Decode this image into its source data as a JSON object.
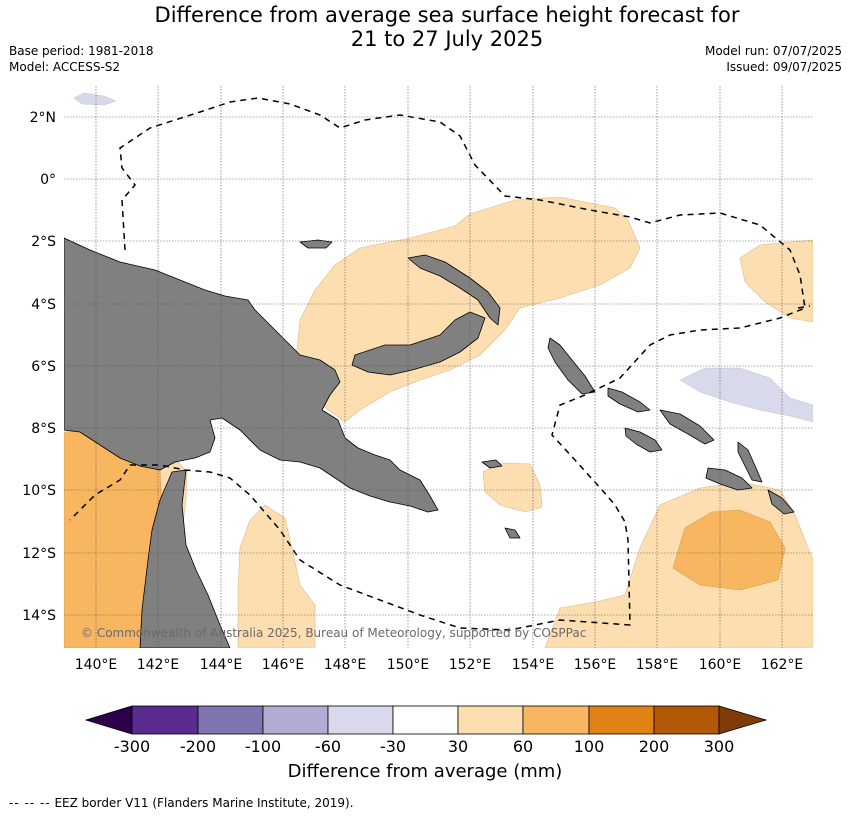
{
  "title_line1": "Difference from average sea surface height forecast for",
  "title_line2": "21 to 27 July 2025",
  "base_period": "Base period: 1981-2018",
  "model": "Model: ACCESS-S2",
  "model_run": "Model run: 07/07/2025",
  "issued": "Issued: 09/07/2025",
  "copyright": "© Commonwealth of Australia 2025, Bureau of Meteorology, supported by COSPPac",
  "map": {
    "lon_ticks": [
      "140°E",
      "142°E",
      "144°E",
      "146°E",
      "148°E",
      "150°E",
      "152°E",
      "154°E",
      "156°E",
      "158°E",
      "160°E",
      "162°E"
    ],
    "lat_ticks": [
      "2°N",
      "0°",
      "2°S",
      "4°S",
      "6°S",
      "8°S",
      "10°S",
      "12°S",
      "14°S"
    ],
    "lon_range": [
      139,
      163
    ],
    "lat_range": [
      -15,
      3
    ],
    "grid": true,
    "colors": {
      "land": "#808080",
      "ocean": "#ffffff",
      "pale_orange": "#fddeb0",
      "orange": "#f9b660",
      "pale_purple": "#d8d9ea"
    }
  },
  "colorbar": {
    "ticks": [
      "-300",
      "-200",
      "-100",
      "-60",
      "-30",
      "30",
      "60",
      "100",
      "200",
      "300"
    ],
    "colors": [
      "#5b2b8f",
      "#8074b0",
      "#b2abd2",
      "#d8d9ea",
      "#ffffff",
      "#fddeb0",
      "#f9b660",
      "#e08214",
      "#b35806"
    ],
    "under_color": "#2d004b",
    "over_color": "#7f3b08",
    "label": "Difference from average (mm)"
  },
  "legend": {
    "dashes": "--  --  --",
    "eez_label": "EEZ border V11 (Flanders Marine Institute, 2019)."
  }
}
